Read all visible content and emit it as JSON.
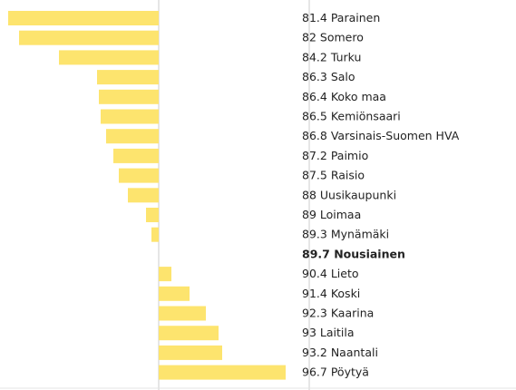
{
  "chart_data": {
    "type": "diverging-bar",
    "categories": [
      "Parainen",
      "Somero",
      "Turku",
      "Salo",
      "Koko maa",
      "Kemiönsaari",
      "Varsinais-Suomen HVA",
      "Paimio",
      "Raisio",
      "Uusikaupunki",
      "Loimaa",
      "Mynämäki",
      "Nousiainen",
      "Lieto",
      "Koski",
      "Kaarina",
      "Laitila",
      "Naantali",
      "Pöytyä"
    ],
    "values": [
      81.4,
      82,
      84.2,
      86.3,
      86.4,
      86.5,
      86.8,
      87.2,
      87.5,
      88,
      89,
      89.3,
      89.7,
      90.4,
      91.4,
      92.3,
      93,
      93.2,
      96.7
    ],
    "color": "#fde46e",
    "highlight": 12
  }
}
